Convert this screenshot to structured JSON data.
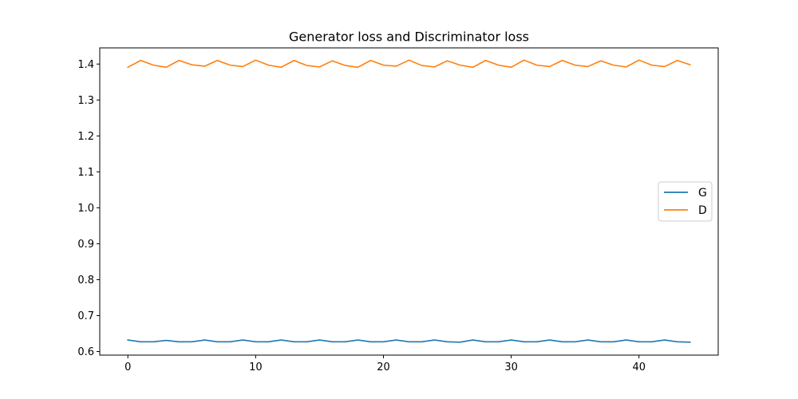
{
  "chart_data": {
    "type": "line",
    "title": "Generator loss and Discriminator loss",
    "xlabel": "",
    "ylabel": "",
    "xlim": [
      -2.2,
      46.2
    ],
    "ylim": [
      0.59,
      1.445
    ],
    "xticks": [
      0,
      10,
      20,
      30,
      40
    ],
    "yticks": [
      0.6,
      0.7,
      0.8,
      0.9,
      1.0,
      1.1,
      1.2,
      1.3,
      1.4
    ],
    "ytick_labels": [
      "0.6",
      "0.7",
      "0.8",
      "0.9",
      "1.0",
      "1.1",
      "1.2",
      "1.3",
      "1.4"
    ],
    "xtick_labels": [
      "0",
      "10",
      "20",
      "30",
      "40"
    ],
    "grid": false,
    "legend_position": "center-right",
    "x": [
      0,
      1,
      2,
      3,
      4,
      5,
      6,
      7,
      8,
      9,
      10,
      11,
      12,
      13,
      14,
      15,
      16,
      17,
      18,
      19,
      20,
      21,
      22,
      23,
      24,
      25,
      26,
      27,
      28,
      29,
      30,
      31,
      32,
      33,
      34,
      35,
      36,
      37,
      38,
      39,
      40,
      41,
      42,
      43,
      44
    ],
    "series": [
      {
        "name": "G",
        "color": "#1f77b4",
        "values": [
          0.632,
          0.627,
          0.627,
          0.631,
          0.627,
          0.627,
          0.632,
          0.627,
          0.627,
          0.632,
          0.627,
          0.627,
          0.632,
          0.627,
          0.627,
          0.632,
          0.627,
          0.627,
          0.632,
          0.627,
          0.627,
          0.632,
          0.627,
          0.627,
          0.632,
          0.627,
          0.626,
          0.632,
          0.627,
          0.627,
          0.632,
          0.627,
          0.627,
          0.632,
          0.627,
          0.627,
          0.632,
          0.627,
          0.627,
          0.632,
          0.627,
          0.627,
          0.632,
          0.627,
          0.626
        ]
      },
      {
        "name": "D",
        "color": "#ff7f0e",
        "values": [
          1.391,
          1.41,
          1.397,
          1.391,
          1.41,
          1.398,
          1.394,
          1.41,
          1.397,
          1.393,
          1.411,
          1.397,
          1.391,
          1.41,
          1.396,
          1.392,
          1.409,
          1.396,
          1.391,
          1.41,
          1.397,
          1.394,
          1.411,
          1.396,
          1.392,
          1.409,
          1.397,
          1.391,
          1.41,
          1.397,
          1.391,
          1.411,
          1.397,
          1.393,
          1.41,
          1.397,
          1.393,
          1.409,
          1.397,
          1.392,
          1.411,
          1.397,
          1.393,
          1.41,
          1.398
        ]
      }
    ]
  }
}
